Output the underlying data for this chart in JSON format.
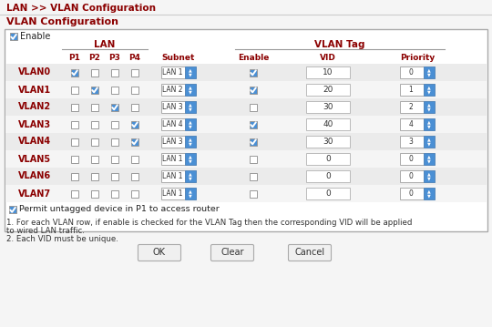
{
  "title_breadcrumb": "LAN >> VLAN Configuration",
  "section_title": "VLAN Configuration",
  "bg_color": "#f5f5f5",
  "box_bg": "#ffffff",
  "border_color": "#aaaaaa",
  "header_color": "#8b0000",
  "col_header_color": "#8b0000",
  "row_label_color": "#8b0000",
  "vlan_rows": [
    {
      "name": "VLAN0",
      "p1": true,
      "p2": false,
      "p3": false,
      "p4": false,
      "subnet": "LAN 1",
      "tag_enable": true,
      "vid": 10,
      "priority": 0
    },
    {
      "name": "VLAN1",
      "p1": false,
      "p2": true,
      "p3": false,
      "p4": false,
      "subnet": "LAN 2",
      "tag_enable": true,
      "vid": 20,
      "priority": 1
    },
    {
      "name": "VLAN2",
      "p1": false,
      "p2": false,
      "p3": true,
      "p4": false,
      "subnet": "LAN 3",
      "tag_enable": false,
      "vid": 30,
      "priority": 2
    },
    {
      "name": "VLAN3",
      "p1": false,
      "p2": false,
      "p3": false,
      "p4": true,
      "subnet": "LAN 4",
      "tag_enable": true,
      "vid": 40,
      "priority": 4
    },
    {
      "name": "VLAN4",
      "p1": false,
      "p2": false,
      "p3": false,
      "p4": true,
      "subnet": "LAN 3",
      "tag_enable": true,
      "vid": 30,
      "priority": 3
    },
    {
      "name": "VLAN5",
      "p1": false,
      "p2": false,
      "p3": false,
      "p4": false,
      "subnet": "LAN 1",
      "tag_enable": false,
      "vid": 0,
      "priority": 0
    },
    {
      "name": "VLAN6",
      "p1": false,
      "p2": false,
      "p3": false,
      "p4": false,
      "subnet": "LAN 1",
      "tag_enable": false,
      "vid": 0,
      "priority": 0
    },
    {
      "name": "VLAN7",
      "p1": false,
      "p2": false,
      "p3": false,
      "p4": false,
      "subnet": "LAN 1",
      "tag_enable": false,
      "vid": 0,
      "priority": 0
    }
  ],
  "permit_untagged": true,
  "note1": "1. For each VLAN row, if enable is checked for the VLAN Tag then the corresponding VID will be applied",
  "note1b": "to wired LAN traffic.",
  "note2": "2. Each VID must be unique.",
  "checkbox_checked_color": "#4a8fd4",
  "checkbox_unchecked_color": "#ffffff",
  "checkbox_border": "#999999",
  "row_even_color": "#ebebeb",
  "row_odd_color": "#f5f5f5",
  "spinner_color": "#4a8fd4",
  "vid_box_border": "#bbbbbb",
  "btn_face": "#f0f0f0",
  "btn_border": "#aaaaaa"
}
